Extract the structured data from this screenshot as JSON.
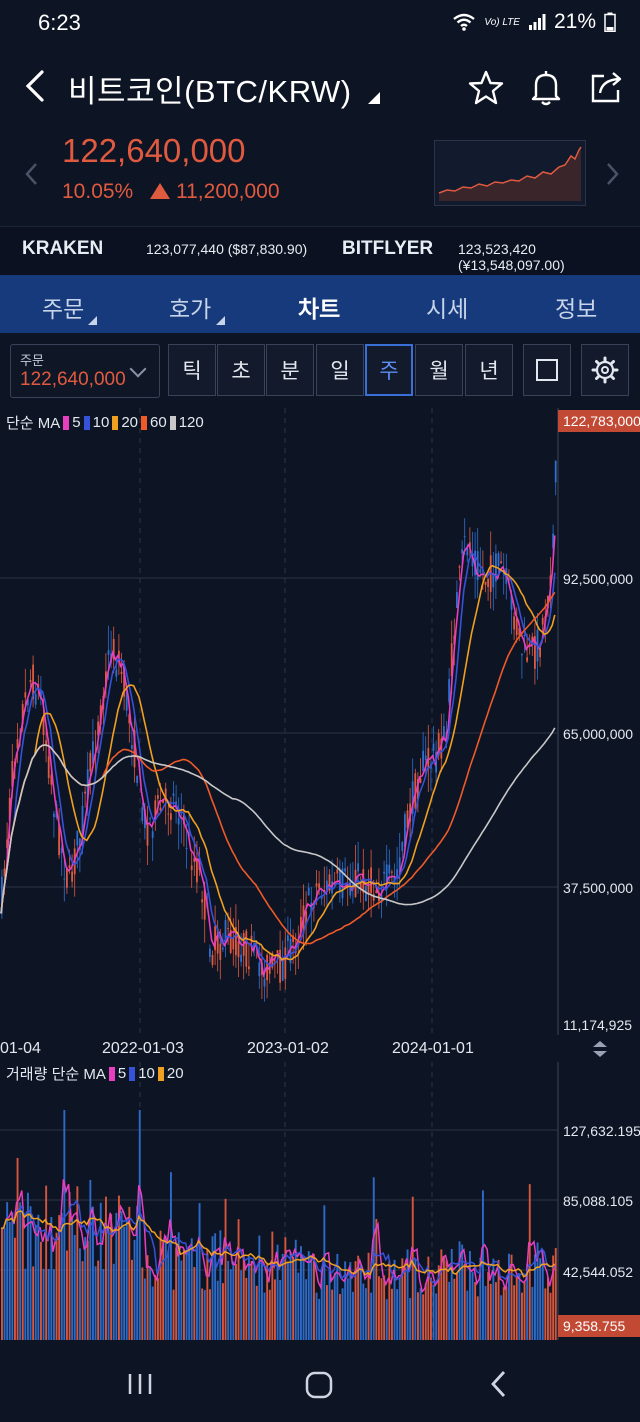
{
  "status": {
    "time": "6:23",
    "battery": "21%",
    "volte": "Vo) LTE"
  },
  "header": {
    "title": "비트코인(BTC/KRW)",
    "price": "122,640,000",
    "change_pct": "10.05%",
    "change_amt": "11,200,000"
  },
  "exchanges": [
    {
      "name": "KRAKEN",
      "value": "123,077,440 ($87,830.90)"
    },
    {
      "name": "BITFLYER",
      "value": "123,523,420 (¥13,548,097.00)"
    }
  ],
  "tabs": [
    "주문",
    "호가",
    "차트",
    "시세",
    "정보"
  ],
  "active_tab": "차트",
  "order": {
    "label": "주문",
    "value": "122,640,000"
  },
  "periods": [
    "틱",
    "초",
    "분",
    "일",
    "주",
    "월",
    "년"
  ],
  "active_period": "주",
  "price_chart": {
    "legend_title": "단순 MA",
    "ma_periods": [
      "5",
      "10",
      "20",
      "60",
      "120"
    ],
    "ma_colors": [
      "#e83ec0",
      "#3552d8",
      "#f0a020",
      "#f05a28",
      "#c8c8c8"
    ],
    "y_labels": [
      "92,500,000",
      "65,000,000",
      "37,500,000",
      "11,174,925"
    ],
    "current_price_label": "122,783,000",
    "date_labels": [
      "01-04",
      "2022-01-03",
      "2023-01-02",
      "2024-01-01"
    ]
  },
  "volume_chart": {
    "legend_title": "거래량 단순 MA",
    "ma_periods": [
      "5",
      "10",
      "20"
    ],
    "ma_colors": [
      "#e83ec0",
      "#3552d8",
      "#f0a020"
    ],
    "y_labels": [
      "127,632.195",
      "85,088.105",
      "42,544.052"
    ],
    "current_label": "9,358.755"
  },
  "colors": {
    "up": "#e05a3f",
    "down": "#2f6fd0",
    "accent": "#163a7c"
  }
}
